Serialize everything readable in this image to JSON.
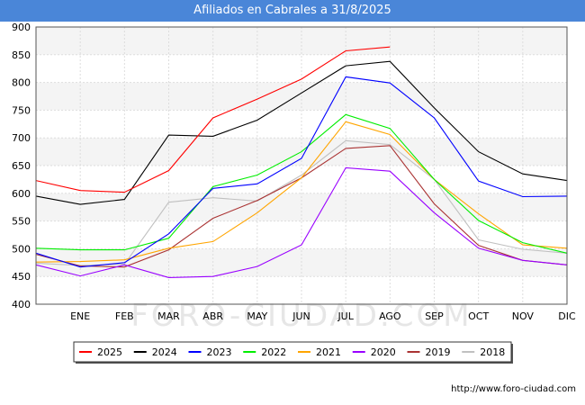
{
  "title": "Afiliados en Cabrales a 31/8/2025",
  "watermark": "FORO-CIUDAD.COM",
  "footer": "http://www.foro-ciudad.com",
  "chart_data": {
    "type": "line",
    "title": "Afiliados en Cabrales a 31/8/2025",
    "xlabel": "",
    "ylabel": "",
    "categories": [
      "",
      "ENE",
      "FEB",
      "MAR",
      "ABR",
      "MAY",
      "JUN",
      "JUL",
      "AGO",
      "SEP",
      "OCT",
      "NOV",
      "DIC"
    ],
    "ylim": [
      400,
      900
    ],
    "yticks": [
      400,
      450,
      500,
      550,
      600,
      650,
      700,
      750,
      800,
      850,
      900
    ],
    "grid": true,
    "legend_position": "bottom",
    "series": [
      {
        "name": "2025",
        "color": "#ff0000",
        "values": [
          623,
          605,
          602,
          641,
          736,
          770,
          806,
          857,
          864,
          null,
          null,
          null,
          null
        ]
      },
      {
        "name": "2024",
        "color": "#000000",
        "values": [
          595,
          580,
          589,
          705,
          703,
          732,
          781,
          830,
          838,
          754,
          675,
          635,
          623
        ]
      },
      {
        "name": "2023",
        "color": "#0000ff",
        "values": [
          492,
          467,
          475,
          527,
          609,
          617,
          663,
          810,
          799,
          736,
          622,
          594,
          595
        ]
      },
      {
        "name": "2022",
        "color": "#00ee00",
        "values": [
          501,
          498,
          498,
          519,
          612,
          633,
          675,
          742,
          717,
          625,
          551,
          511,
          492
        ]
      },
      {
        "name": "2021",
        "color": "#ffa500",
        "values": [
          476,
          477,
          480,
          501,
          513,
          565,
          628,
          729,
          706,
          625,
          563,
          507,
          501
        ]
      },
      {
        "name": "2020",
        "color": "#9900ff",
        "values": [
          471,
          451,
          471,
          448,
          450,
          468,
          507,
          646,
          640,
          565,
          501,
          479,
          471
        ]
      },
      {
        "name": "2019",
        "color": "#aa3333",
        "values": [
          490,
          469,
          467,
          498,
          555,
          587,
          628,
          681,
          686,
          581,
          506,
          479,
          471
        ]
      },
      {
        "name": "2018",
        "color": "#c0c0c0",
        "values": [
          474,
          470,
          472,
          584,
          592,
          586,
          633,
          695,
          688,
          625,
          516,
          499,
          492
        ]
      }
    ]
  }
}
